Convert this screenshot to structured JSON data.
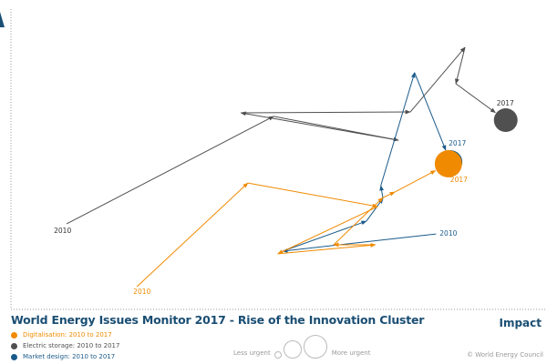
{
  "title": "World Energy Issues Monitor 2017 - Rise of the Innovation Cluster",
  "x_axis_label": "Impact",
  "copyright": "© World Energy Council",
  "size_legend": {
    "less": "Less urgent",
    "more": "More urgent"
  },
  "colors": {
    "axis_arrow": "#1a4e73",
    "title": "#1a4e73"
  },
  "chart_data": {
    "type": "line",
    "xlabel": "Impact",
    "ylabel": "",
    "xlim": [
      0,
      100
    ],
    "ylim": [
      0,
      100
    ],
    "grid": false,
    "legend_placement": "bottom-left",
    "series": [
      {
        "name": "Digitalisation: 2010 to 2017",
        "color": "#f08a00",
        "start_label": "2010",
        "end_label": "2017",
        "end_urgency": 1.15,
        "points": [
          [
            23.5,
            7.8
          ],
          [
            44.2,
            43.4
          ],
          [
            68.4,
            35.3
          ],
          [
            49.8,
            19.1
          ],
          [
            68.0,
            22.2
          ],
          [
            60.2,
            22.2
          ],
          [
            69.4,
            38.4
          ],
          [
            71.6,
            40.3
          ],
          [
            81.6,
            50.0
          ]
        ]
      },
      {
        "name": "Electric storage: 2010 to 2017",
        "color": "#505050",
        "start_label": "2010",
        "end_label": "2017",
        "end_urgency": 1.0,
        "points": [
          [
            10.4,
            29.4
          ],
          [
            49.0,
            66.3
          ],
          [
            72.3,
            58.1
          ],
          [
            42.9,
            67.5
          ],
          [
            74.5,
            67.8
          ],
          [
            84.7,
            90.0
          ],
          [
            83.0,
            77.5
          ],
          [
            92.3,
            65.0
          ]
        ]
      },
      {
        "name": "Market design: 2010 to 2017",
        "color": "#1a5a8a",
        "start_label": "2010",
        "end_label": "2017",
        "end_urgency": 1.0,
        "points": [
          [
            79.3,
            25.9
          ],
          [
            50.7,
            20.0
          ],
          [
            66.3,
            30.3
          ],
          [
            69.4,
            38.1
          ],
          [
            69.0,
            42.5
          ],
          [
            75.3,
            81.3
          ],
          [
            82.0,
            50.6
          ]
        ]
      }
    ]
  }
}
